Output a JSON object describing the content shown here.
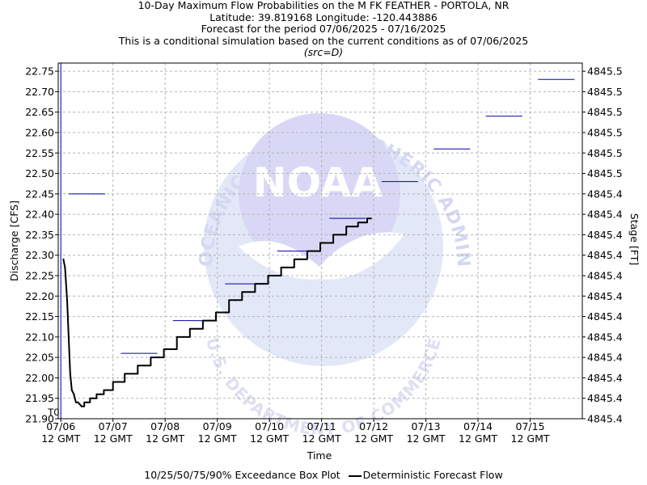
{
  "title_lines": [
    "10-Day Maximum Flow Probabilities on the M FK FEATHER - PORTOLA, NR",
    "Latitude: 39.819168 Longitude: -120.443886",
    "Forecast for the period 07/06/2025 - 07/16/2025",
    "This is a conditional simulation based on the current conditions as of 07/06/2025",
    "(src=D)"
  ],
  "watermark": {
    "wordmark": "NOAA",
    "ring_text": "NATIONAL OCEANIC AND ATMOSPHERIC ADMINISTRATION",
    "bottom_text": "U.S. DEPARTMENT OF COMMERCE"
  },
  "legend": {
    "box_label": "10/25/50/75/90% Exceedance Box Plot",
    "line_label": "Deterministic Forecast Flow"
  },
  "colors": {
    "forecast_line": "#000000",
    "box_plot": "#0000aa",
    "t0_line": "#0000cc",
    "grid": "#b4b4b4",
    "watermark": "#dcdcf6"
  },
  "chart_data": {
    "type": "line",
    "xlabel": "Time",
    "ylabel": "Discharge [CFS]",
    "y2label": "Stage [FT]",
    "t0_label": "T0",
    "ylim": [
      21.9,
      22.77
    ],
    "xlim": [
      -0.05,
      10.0
    ],
    "grid": true,
    "legend_position": "bottom",
    "y_ticks": [
      21.9,
      21.95,
      22.0,
      22.05,
      22.1,
      22.15,
      22.2,
      22.25,
      22.3,
      22.35,
      22.4,
      22.45,
      22.5,
      22.55,
      22.6,
      22.65,
      22.7,
      22.75
    ],
    "y_tick_labels": [
      "21.90",
      "21.95",
      "22.00",
      "22.05",
      "22.10",
      "22.15",
      "22.20",
      "22.25",
      "22.30",
      "22.35",
      "22.40",
      "22.45",
      "22.50",
      "22.55",
      "22.60",
      "22.65",
      "22.70",
      "22.75"
    ],
    "y2_tick_labels": [
      "4845.4",
      "4845.4",
      "4845.4",
      "4845.4",
      "4845.4",
      "4845.4",
      "4845.4",
      "4845.4",
      "4845.4",
      "4845.4",
      "4845.4",
      "4845.4",
      "4845.5",
      "4845.5",
      "4845.5",
      "4845.5",
      "4845.5",
      "4845.5"
    ],
    "x_ticks": [
      0,
      1,
      2,
      3,
      4,
      5,
      6,
      7,
      8,
      9
    ],
    "x_tick_dates": [
      "07/06",
      "07/07",
      "07/08",
      "07/09",
      "07/10",
      "07/11",
      "07/12",
      "07/13",
      "07/14",
      "07/15"
    ],
    "x_tick_times": [
      "12 GMT",
      "12 GMT",
      "12 GMT",
      "12 GMT",
      "12 GMT",
      "12 GMT",
      "12 GMT",
      "12 GMT",
      "12 GMT",
      "12 GMT"
    ],
    "box_plot_values": [
      {
        "x_start": 0.15,
        "x_end": 0.85,
        "value": 22.45
      },
      {
        "x_start": 1.15,
        "x_end": 1.85,
        "value": 22.06
      },
      {
        "x_start": 2.15,
        "x_end": 2.85,
        "value": 22.14
      },
      {
        "x_start": 3.15,
        "x_end": 3.85,
        "value": 22.23
      },
      {
        "x_start": 4.15,
        "x_end": 4.85,
        "value": 22.31
      },
      {
        "x_start": 5.15,
        "x_end": 5.85,
        "value": 22.39
      },
      {
        "x_start": 6.15,
        "x_end": 6.85,
        "value": 22.48
      },
      {
        "x_start": 7.15,
        "x_end": 7.85,
        "value": 22.56
      },
      {
        "x_start": 8.15,
        "x_end": 8.85,
        "value": 22.64
      },
      {
        "x_start": 9.15,
        "x_end": 9.85,
        "value": 22.73
      }
    ],
    "forecast_flow": {
      "x": [
        0.05,
        0.08,
        0.12,
        0.15,
        0.18,
        0.21,
        0.25,
        0.29,
        0.33,
        0.4,
        0.5,
        0.62,
        0.75,
        0.9,
        1.1,
        1.35,
        1.6,
        1.85,
        2.1,
        2.35,
        2.6,
        2.85,
        3.1,
        3.35,
        3.6,
        3.85,
        4.1,
        4.35,
        4.6,
        4.85,
        5.1,
        5.35,
        5.6,
        5.8,
        5.95
      ],
      "y": [
        22.29,
        22.27,
        22.19,
        22.1,
        22.01,
        21.97,
        21.96,
        21.94,
        21.94,
        21.93,
        21.94,
        21.95,
        21.96,
        21.97,
        21.99,
        22.01,
        22.03,
        22.05,
        22.07,
        22.1,
        22.12,
        22.14,
        22.16,
        22.19,
        22.21,
        22.23,
        22.25,
        22.27,
        22.29,
        22.31,
        22.33,
        22.35,
        22.37,
        22.38,
        22.39
      ]
    }
  }
}
